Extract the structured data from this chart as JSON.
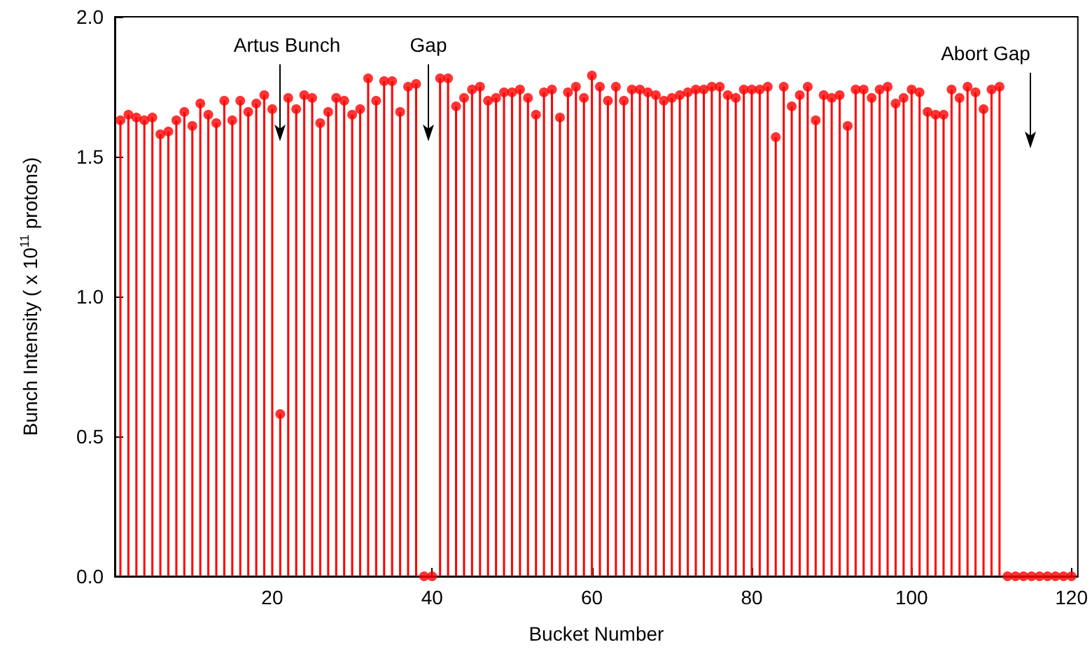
{
  "chart_data": {
    "type": "lollipop",
    "xlabel": "Bucket Number",
    "ylabel": "Bunch Intensity ( x 10$^{11}$ protons)",
    "x": [
      1,
      2,
      3,
      4,
      5,
      6,
      7,
      8,
      9,
      10,
      11,
      12,
      13,
      14,
      15,
      16,
      17,
      18,
      19,
      20,
      21,
      22,
      23,
      24,
      25,
      26,
      27,
      28,
      29,
      30,
      31,
      32,
      33,
      34,
      35,
      36,
      37,
      38,
      39,
      40,
      41,
      42,
      43,
      44,
      45,
      46,
      47,
      48,
      49,
      50,
      51,
      52,
      53,
      54,
      55,
      56,
      57,
      58,
      59,
      60,
      61,
      62,
      63,
      64,
      65,
      66,
      67,
      68,
      69,
      70,
      71,
      72,
      73,
      74,
      75,
      76,
      77,
      78,
      79,
      80,
      81,
      82,
      83,
      84,
      85,
      86,
      87,
      88,
      89,
      90,
      91,
      92,
      93,
      94,
      95,
      96,
      97,
      98,
      99,
      100,
      101,
      102,
      103,
      104,
      105,
      106,
      107,
      108,
      109,
      110,
      111,
      112,
      113,
      114,
      115,
      116,
      117,
      118,
      119,
      120
    ],
    "series": [
      {
        "color": "#ff0000",
        "values": [
          1.63,
          1.65,
          1.64,
          1.63,
          1.64,
          1.58,
          1.59,
          1.63,
          1.66,
          1.61,
          1.69,
          1.65,
          1.62,
          1.7,
          1.63,
          1.7,
          1.66,
          1.69,
          1.72,
          1.67,
          0.58,
          1.71,
          1.67,
          1.72,
          1.71,
          1.62,
          1.66,
          1.71,
          1.7,
          1.65,
          1.67,
          1.78,
          1.7,
          1.77,
          1.77,
          1.66,
          1.75,
          1.76,
          0,
          0,
          1.78,
          1.78,
          1.68,
          1.71,
          1.74,
          1.75,
          1.7,
          1.71,
          1.73,
          1.73,
          1.74,
          1.71,
          1.65,
          1.73,
          1.74,
          1.64,
          1.73,
          1.75,
          1.71,
          1.79,
          1.75,
          1.7,
          1.75,
          1.7,
          1.74,
          1.74,
          1.73,
          1.72,
          1.7,
          1.71,
          1.72,
          1.73,
          1.74,
          1.74,
          1.75,
          1.75,
          1.72,
          1.71,
          1.74,
          1.74,
          1.74,
          1.75,
          1.57,
          1.75,
          1.68,
          1.72,
          1.75,
          1.63,
          1.72,
          1.71,
          1.72,
          1.61,
          1.74,
          1.74,
          1.71,
          1.74,
          1.75,
          1.69,
          1.71,
          1.74,
          1.73,
          1.66,
          1.65,
          1.65,
          1.74,
          1.71,
          1.75,
          1.73,
          1.67,
          1.74,
          1.75,
          0,
          0,
          0,
          0,
          0,
          0,
          0,
          0,
          0
        ]
      }
    ],
    "xlim": [
      0.3,
      120.8
    ],
    "xticks": [
      20,
      40,
      60,
      80,
      100,
      120
    ],
    "ylim": [
      0,
      2.0
    ],
    "yticks": [
      {
        "value": 0,
        "label": "0.0"
      },
      {
        "value": 0.5,
        "label": "0.5"
      },
      {
        "value": 1.0,
        "label": "1.0"
      },
      {
        "value": 1.5,
        "label": "1.5"
      },
      {
        "value": 2.0,
        "label": "2.0"
      }
    ],
    "marker": "circle",
    "grid": false,
    "annotations": [
      "Artus Bunch",
      "Gap",
      "Abort Gap"
    ]
  }
}
